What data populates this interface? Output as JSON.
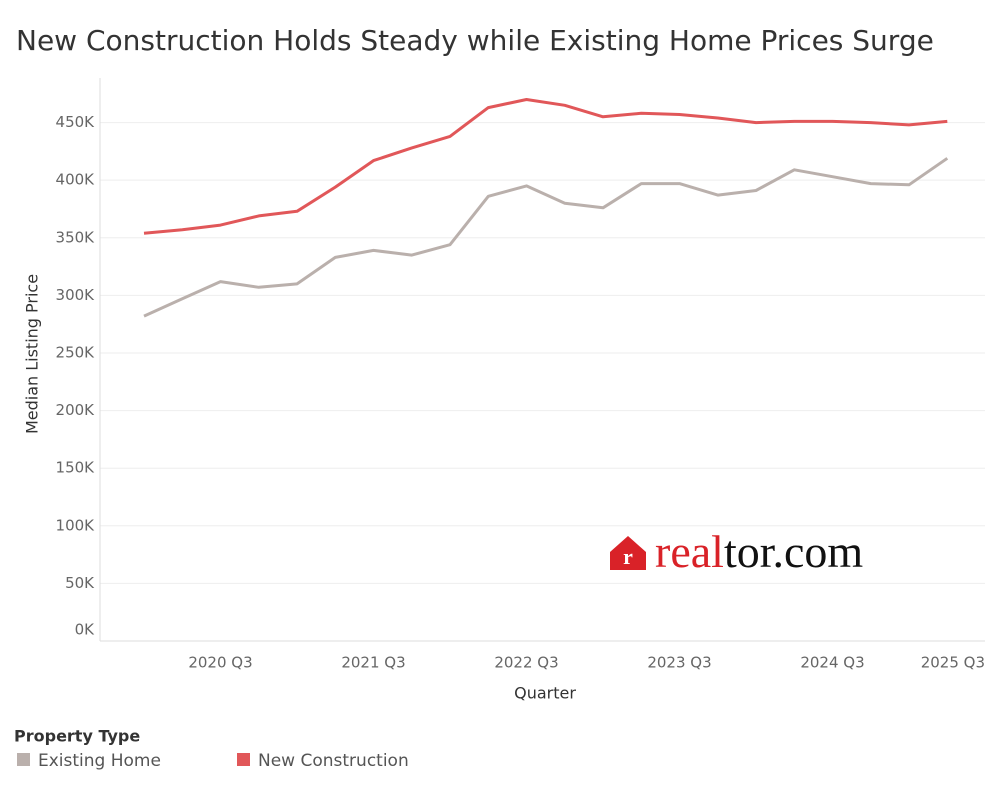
{
  "chart_data": {
    "type": "line",
    "title": "New Construction Holds Steady while Existing Home Prices Surge",
    "x_label": "Quarter",
    "y_label": "Median Listing Price",
    "legend_title": "Property Type",
    "watermark": [
      "real",
      "tor.com"
    ],
    "categories": [
      null,
      null,
      "2020 Q3",
      null,
      null,
      null,
      "2021 Q3",
      null,
      null,
      null,
      "2022 Q3",
      null,
      null,
      null,
      "2023 Q3",
      null,
      null,
      null,
      "2024 Q3",
      null,
      null,
      null,
      "2025 Q3"
    ],
    "series": [
      {
        "name": "Existing Home",
        "color": "#bab0ac",
        "values": [
          282000,
          297000,
          312000,
          307000,
          310000,
          333000,
          339000,
          335000,
          344000,
          386000,
          395000,
          380000,
          376000,
          397000,
          397000,
          387000,
          391000,
          409000,
          403000,
          397000,
          396000,
          419000,
          null
        ]
      },
      {
        "name": "New Construction",
        "color": "#e15759",
        "values": [
          354000,
          357000,
          361000,
          369000,
          373000,
          394000,
          417000,
          428000,
          438000,
          463000,
          470000,
          465000,
          455000,
          458000,
          457000,
          454000,
          450000,
          451000,
          451000,
          450000,
          448000,
          451000,
          null
        ]
      }
    ],
    "ylim": [
      0,
      480000
    ],
    "yticks": [
      {
        "value": 0,
        "label": "0K"
      },
      {
        "value": 50000,
        "label": "50K"
      },
      {
        "value": 100000,
        "label": "100K"
      },
      {
        "value": 150000,
        "label": "150K"
      },
      {
        "value": 200000,
        "label": "200K"
      },
      {
        "value": 250000,
        "label": "250K"
      },
      {
        "value": 300000,
        "label": "300K"
      },
      {
        "value": 350000,
        "label": "350K"
      },
      {
        "value": 400000,
        "label": "400K"
      },
      {
        "value": 450000,
        "label": "450K"
      }
    ],
    "grid": true
  }
}
